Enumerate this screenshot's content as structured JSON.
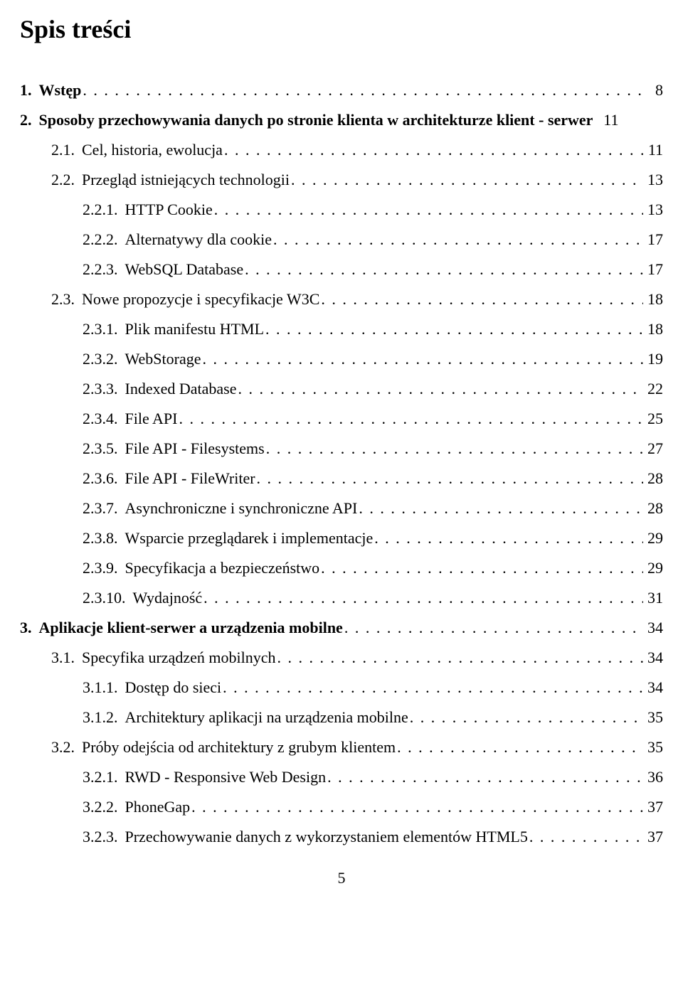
{
  "title": "Spis treści",
  "footer_page_number": "5",
  "toc": [
    {
      "level": 1,
      "num": "1.",
      "label": "Wstęp",
      "page": "8",
      "bold": true,
      "pageBold": false
    },
    {
      "level": 1,
      "num": "2.",
      "label": "Sposoby przechowywania danych po stronie klienta w architekturze klient - serwer",
      "page": "11",
      "bold": true,
      "pageBold": false,
      "noLeader": true
    },
    {
      "level": 2,
      "num": "2.1.",
      "label": "Cel, historia, ewolucja",
      "page": "11",
      "bold": false,
      "pageBold": false
    },
    {
      "level": 2,
      "num": "2.2.",
      "label": "Przegląd istniejących technologii",
      "page": "13",
      "bold": false,
      "pageBold": false
    },
    {
      "level": 3,
      "num": "2.2.1.",
      "label": "HTTP Cookie",
      "page": "13",
      "bold": false,
      "pageBold": false
    },
    {
      "level": 3,
      "num": "2.2.2.",
      "label": "Alternatywy dla cookie",
      "page": "17",
      "bold": false,
      "pageBold": false
    },
    {
      "level": 3,
      "num": "2.2.3.",
      "label": "WebSQL Database",
      "page": "17",
      "bold": false,
      "pageBold": false
    },
    {
      "level": 2,
      "num": "2.3.",
      "label": "Nowe propozycje i specyfikacje W3C",
      "page": "18",
      "bold": false,
      "pageBold": false
    },
    {
      "level": 3,
      "num": "2.3.1.",
      "label": "Plik manifestu HTML",
      "page": "18",
      "bold": false,
      "pageBold": false
    },
    {
      "level": 3,
      "num": "2.3.2.",
      "label": "WebStorage",
      "page": "19",
      "bold": false,
      "pageBold": false
    },
    {
      "level": 3,
      "num": "2.3.3.",
      "label": "Indexed Database",
      "page": "22",
      "bold": false,
      "pageBold": false
    },
    {
      "level": 3,
      "num": "2.3.4.",
      "label": "File API",
      "page": "25",
      "bold": false,
      "pageBold": false
    },
    {
      "level": 3,
      "num": "2.3.5.",
      "label": "File API - Filesystems",
      "page": "27",
      "bold": false,
      "pageBold": false
    },
    {
      "level": 3,
      "num": "2.3.6.",
      "label": "File API - FileWriter",
      "page": "28",
      "bold": false,
      "pageBold": false
    },
    {
      "level": 3,
      "num": "2.3.7.",
      "label": "Asynchroniczne i synchroniczne API",
      "page": "28",
      "bold": false,
      "pageBold": false
    },
    {
      "level": 3,
      "num": "2.3.8.",
      "label": "Wsparcie przeglądarek i implementacje",
      "page": "29",
      "bold": false,
      "pageBold": false
    },
    {
      "level": 3,
      "num": "2.3.9.",
      "label": "Specyfikacja a bezpieczeństwo",
      "page": "29",
      "bold": false,
      "pageBold": false
    },
    {
      "level": 3,
      "num": "2.3.10.",
      "label": "Wydajność",
      "page": "31",
      "bold": false,
      "pageBold": false
    },
    {
      "level": 1,
      "num": "3.",
      "label": "Aplikacje klient-serwer a urządzenia mobilne",
      "page": "34",
      "bold": true,
      "pageBold": false
    },
    {
      "level": 2,
      "num": "3.1.",
      "label": "Specyfika urządzeń mobilnych",
      "page": "34",
      "bold": false,
      "pageBold": false
    },
    {
      "level": 3,
      "num": "3.1.1.",
      "label": "Dostęp do sieci",
      "page": "34",
      "bold": false,
      "pageBold": false
    },
    {
      "level": 3,
      "num": "3.1.2.",
      "label": "Architektury aplikacji na urządzenia mobilne",
      "page": "35",
      "bold": false,
      "pageBold": false
    },
    {
      "level": 2,
      "num": "3.2.",
      "label": "Próby odejścia od architektury z grubym klientem",
      "page": "35",
      "bold": false,
      "pageBold": false
    },
    {
      "level": 3,
      "num": "3.2.1.",
      "label": "RWD - Responsive Web Design",
      "page": "36",
      "bold": false,
      "pageBold": false
    },
    {
      "level": 3,
      "num": "3.2.2.",
      "label": "PhoneGap",
      "page": "37",
      "bold": false,
      "pageBold": false
    },
    {
      "level": 3,
      "num": "3.2.3.",
      "label": "Przechowywanie danych z wykorzystaniem elementów HTML5",
      "page": "37",
      "bold": false,
      "pageBold": false
    }
  ]
}
